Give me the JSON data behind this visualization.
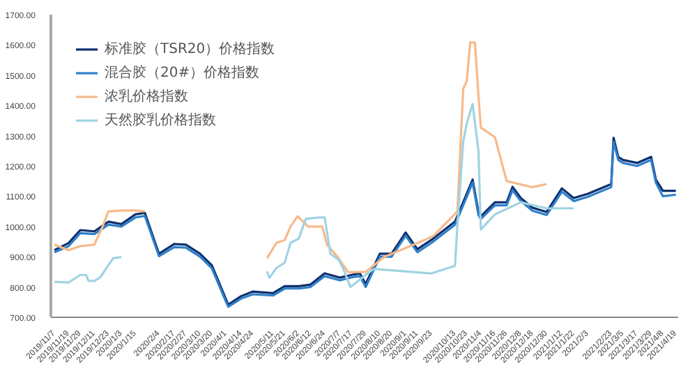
{
  "chart_data": {
    "type": "line",
    "marker": "none",
    "line_style": "solid",
    "grid": false,
    "legend": "top left",
    "ylim": [
      700,
      1700
    ],
    "yticks": [
      {
        "value": 700,
        "label": "700.00"
      },
      {
        "value": 800,
        "label": "800.00"
      },
      {
        "value": 900,
        "label": "900.00"
      },
      {
        "value": 1000,
        "label": "1000.00"
      },
      {
        "value": 1100,
        "label": "1100.00"
      },
      {
        "value": 1200,
        "label": "1200.00"
      },
      {
        "value": 1300,
        "label": "1300.00"
      },
      {
        "value": 1400,
        "label": "1400.00"
      },
      {
        "value": 1500,
        "label": "1500.00"
      },
      {
        "value": 1600,
        "label": "1600.00"
      },
      {
        "value": 1700,
        "label": "1700.00"
      }
    ],
    "xlim": [
      "2019-11-04",
      "2021-04-21"
    ],
    "xticks": [
      {
        "value": "2019-11-07",
        "label": "2019/11/7"
      },
      {
        "value": "2019-11-19",
        "label": "2019/11/19"
      },
      {
        "value": "2019-11-29",
        "label": "2019/11/29"
      },
      {
        "value": "2019-12-11",
        "label": "2019/12/11"
      },
      {
        "value": "2019-12-23",
        "label": "2019/12/23"
      },
      {
        "value": "2020-01-03",
        "label": "2020/1/3"
      },
      {
        "value": "2020-01-15",
        "label": "2020/1/15"
      },
      {
        "value": "2020-02-04",
        "label": "2020/2/4"
      },
      {
        "value": "2020-02-17",
        "label": "2020/2/17"
      },
      {
        "value": "2020-02-27",
        "label": "2020/2/27"
      },
      {
        "value": "2020-03-10",
        "label": "2020/3/10"
      },
      {
        "value": "2020-03-20",
        "label": "2020/3/20"
      },
      {
        "value": "2020-04-01",
        "label": "2020/4/1"
      },
      {
        "value": "2020-04-14",
        "label": "2020/4/14"
      },
      {
        "value": "2020-04-24",
        "label": "2020/4/24"
      },
      {
        "value": "2020-05-11",
        "label": "2020/5/11"
      },
      {
        "value": "2020-05-21",
        "label": "2020/5/21"
      },
      {
        "value": "2020-06-02",
        "label": "2020/6/2"
      },
      {
        "value": "2020-06-12",
        "label": "2020/6/12"
      },
      {
        "value": "2020-06-24",
        "label": "2020/6/24"
      },
      {
        "value": "2020-07-07",
        "label": "2020/7/7"
      },
      {
        "value": "2020-07-17",
        "label": "2020/7/17"
      },
      {
        "value": "2020-07-29",
        "label": "2020/7/29"
      },
      {
        "value": "2020-08-10",
        "label": "2020/8/10"
      },
      {
        "value": "2020-08-20",
        "label": "2020/8/20"
      },
      {
        "value": "2020-09-01",
        "label": "2020/9/1"
      },
      {
        "value": "2020-09-11",
        "label": "2020/9/11"
      },
      {
        "value": "2020-09-23",
        "label": "2020/9/23"
      },
      {
        "value": "2020-10-13",
        "label": "2020/10/13"
      },
      {
        "value": "2020-10-23",
        "label": "2020/10/23"
      },
      {
        "value": "2020-11-04",
        "label": "2020/11/4"
      },
      {
        "value": "2020-11-16",
        "label": "2020/11/16"
      },
      {
        "value": "2020-11-26",
        "label": "2020/11/26"
      },
      {
        "value": "2020-12-08",
        "label": "2020/12/8"
      },
      {
        "value": "2020-12-18",
        "label": "2020/12/18"
      },
      {
        "value": "2020-12-30",
        "label": "2020/12/30"
      },
      {
        "value": "2021-01-12",
        "label": "2021/1/12"
      },
      {
        "value": "2021-01-22",
        "label": "2021/1/22"
      },
      {
        "value": "2021-02-03",
        "label": "2021/2/3"
      },
      {
        "value": "2021-02-23",
        "label": "2021/2/23"
      },
      {
        "value": "2021-03-05",
        "label": "2021/3/5"
      },
      {
        "value": "2021-03-17",
        "label": "2021/3/17"
      },
      {
        "value": "2021-03-29",
        "label": "2021/3/29"
      },
      {
        "value": "2021-04-08",
        "label": "2021/4/8"
      },
      {
        "value": "2021-04-19",
        "label": "2021/4/19"
      }
    ],
    "series": [
      {
        "name": "标准胶（TSR20）价格指数",
        "color": "#0d2f6e",
        "x": [
          "2019-11-07",
          "2019-11-19",
          "2019-11-29",
          "2019-12-11",
          "2019-12-23",
          "2020-01-03",
          "2020-01-15",
          "2020-01-23",
          "2020-02-04",
          "2020-02-17",
          "2020-02-27",
          "2020-03-10",
          "2020-03-20",
          "2020-04-01",
          "2020-04-03",
          "2020-04-14",
          "2020-04-24",
          "2020-05-11",
          "2020-05-21",
          "2020-06-02",
          "2020-06-12",
          "2020-06-24",
          "2020-07-07",
          "2020-07-17",
          "2020-07-24",
          "2020-07-29",
          "2020-08-10",
          "2020-08-20",
          "2020-09-01",
          "2020-09-11",
          "2020-09-23",
          "2020-10-13",
          "2020-10-23",
          "2020-10-28",
          "2020-11-02",
          "2020-11-04",
          "2020-11-16",
          "2020-11-26",
          "2020-12-01",
          "2020-12-08",
          "2020-12-18",
          "2020-12-30",
          "2021-01-12",
          "2021-01-22",
          "2021-02-03",
          "2021-02-23",
          "2021-02-25",
          "2021-03-01",
          "2021-03-05",
          "2021-03-17",
          "2021-03-29",
          "2021-04-02",
          "2021-04-08",
          "2021-04-19"
        ],
        "values": [
          922,
          945,
          988,
          984,
          1016,
          1008,
          1040,
          1045,
          910,
          942,
          940,
          910,
          872,
          760,
          742,
          770,
          785,
          780,
          803,
          803,
          808,
          845,
          831,
          840,
          845,
          810,
          910,
          910,
          980,
          925,
          956,
          1016,
          1108,
          1155,
          1048,
          1034,
          1080,
          1080,
          1131,
          1094,
          1062,
          1048,
          1126,
          1094,
          1108,
          1140,
          1293,
          1230,
          1220,
          1210,
          1230,
          1155,
          1118,
          1118
        ]
      },
      {
        "name": "混合胶（20#）价格指数",
        "color": "#2f7fc8",
        "x": [
          "2019-11-07",
          "2019-11-19",
          "2019-11-29",
          "2019-12-11",
          "2019-12-23",
          "2020-01-03",
          "2020-01-15",
          "2020-01-23",
          "2020-02-04",
          "2020-02-17",
          "2020-02-27",
          "2020-03-10",
          "2020-03-20",
          "2020-04-01",
          "2020-04-03",
          "2020-04-14",
          "2020-04-24",
          "2020-05-11",
          "2020-05-21",
          "2020-06-02",
          "2020-06-12",
          "2020-06-24",
          "2020-07-07",
          "2020-07-17",
          "2020-07-24",
          "2020-07-29",
          "2020-08-10",
          "2020-08-20",
          "2020-09-01",
          "2020-09-11",
          "2020-09-23",
          "2020-10-13",
          "2020-10-23",
          "2020-10-28",
          "2020-11-02",
          "2020-11-04",
          "2020-11-16",
          "2020-11-26",
          "2020-12-01",
          "2020-12-08",
          "2020-12-18",
          "2020-12-30",
          "2021-01-12",
          "2021-01-22",
          "2021-02-03",
          "2021-02-23",
          "2021-02-25",
          "2021-03-01",
          "2021-03-05",
          "2021-03-17",
          "2021-03-29",
          "2021-04-02",
          "2021-04-08",
          "2021-04-19"
        ],
        "values": [
          915,
          935,
          978,
          975,
          1006,
          1000,
          1030,
          1035,
          902,
          932,
          930,
          900,
          862,
          752,
          735,
          762,
          776,
          772,
          795,
          795,
          800,
          836,
          822,
          832,
          836,
          800,
          900,
          900,
          970,
          915,
          946,
          1006,
          1098,
          1145,
          1038,
          1025,
          1070,
          1070,
          1120,
          1084,
          1052,
          1038,
          1115,
          1084,
          1098,
          1130,
          1280,
          1220,
          1210,
          1200,
          1220,
          1145,
          1100,
          1105
        ]
      },
      {
        "name": "浓乳价格指数",
        "color": "#f7b98a",
        "x": [
          "2019-11-07",
          "2019-11-19",
          "2019-11-29",
          "2019-12-11",
          "2019-12-18",
          "2019-12-23",
          "2020-01-03",
          "2020-01-15",
          "2020-01-23",
          "2020-03-01",
          "2020-05-06",
          "2020-05-14",
          "2020-05-21",
          "2020-05-26",
          "2020-06-01",
          "2020-06-10",
          "2020-06-22",
          "2020-06-26",
          "2020-07-06",
          "2020-07-14",
          "2020-07-29",
          "2020-08-05",
          "2020-08-14",
          "2020-09-17",
          "2020-09-25",
          "2020-10-15",
          "2020-10-20",
          "2020-10-23",
          "2020-10-26",
          "2020-10-30",
          "2020-11-02",
          "2020-11-04",
          "2020-11-16",
          "2020-11-26",
          "2020-12-18",
          "2020-12-30"
        ],
        "values": [
          940,
          922,
          935,
          940,
          1000,
          1050,
          1053,
          1053,
          1050,
          null,
          895,
          946,
          955,
          1000,
          1034,
          1000,
          1000,
          941,
          895,
          849,
          850,
          872,
          900,
          955,
          970,
          1050,
          1455,
          1480,
          1608,
          1608,
          1432,
          1327,
          1295,
          1150,
          1130,
          1140
        ]
      },
      {
        "name": "天然胶乳价格指数",
        "color": "#9fd3e3",
        "x": [
          "2019-11-07",
          "2019-11-19",
          "2019-11-29",
          "2019-12-04",
          "2019-12-06",
          "2019-12-11",
          "2019-12-16",
          "2019-12-27",
          "2020-01-03",
          "2020-03-01",
          "2020-05-06",
          "2020-05-08",
          "2020-05-14",
          "2020-05-21",
          "2020-05-26",
          "2020-06-02",
          "2020-06-08",
          "2020-06-20",
          "2020-06-24",
          "2020-06-29",
          "2020-07-06",
          "2020-07-10",
          "2020-07-16",
          "2020-07-29",
          "2020-08-05",
          "2020-09-23",
          "2020-10-13",
          "2020-10-15",
          "2020-10-20",
          "2020-10-23",
          "2020-10-28",
          "2020-11-02",
          "2020-11-04",
          "2020-11-16",
          "2020-12-08",
          "2020-12-30",
          "2021-01-22"
        ],
        "values": [
          817,
          815,
          840,
          840,
          820,
          820,
          832,
          895,
          899,
          null,
          852,
          830,
          863,
          880,
          946,
          960,
          1025,
          1030,
          1030,
          910,
          890,
          860,
          800,
          840,
          860,
          845,
          870,
          1000,
          1280,
          1340,
          1405,
          1250,
          990,
          1040,
          1080,
          1060,
          1060
        ]
      }
    ]
  }
}
